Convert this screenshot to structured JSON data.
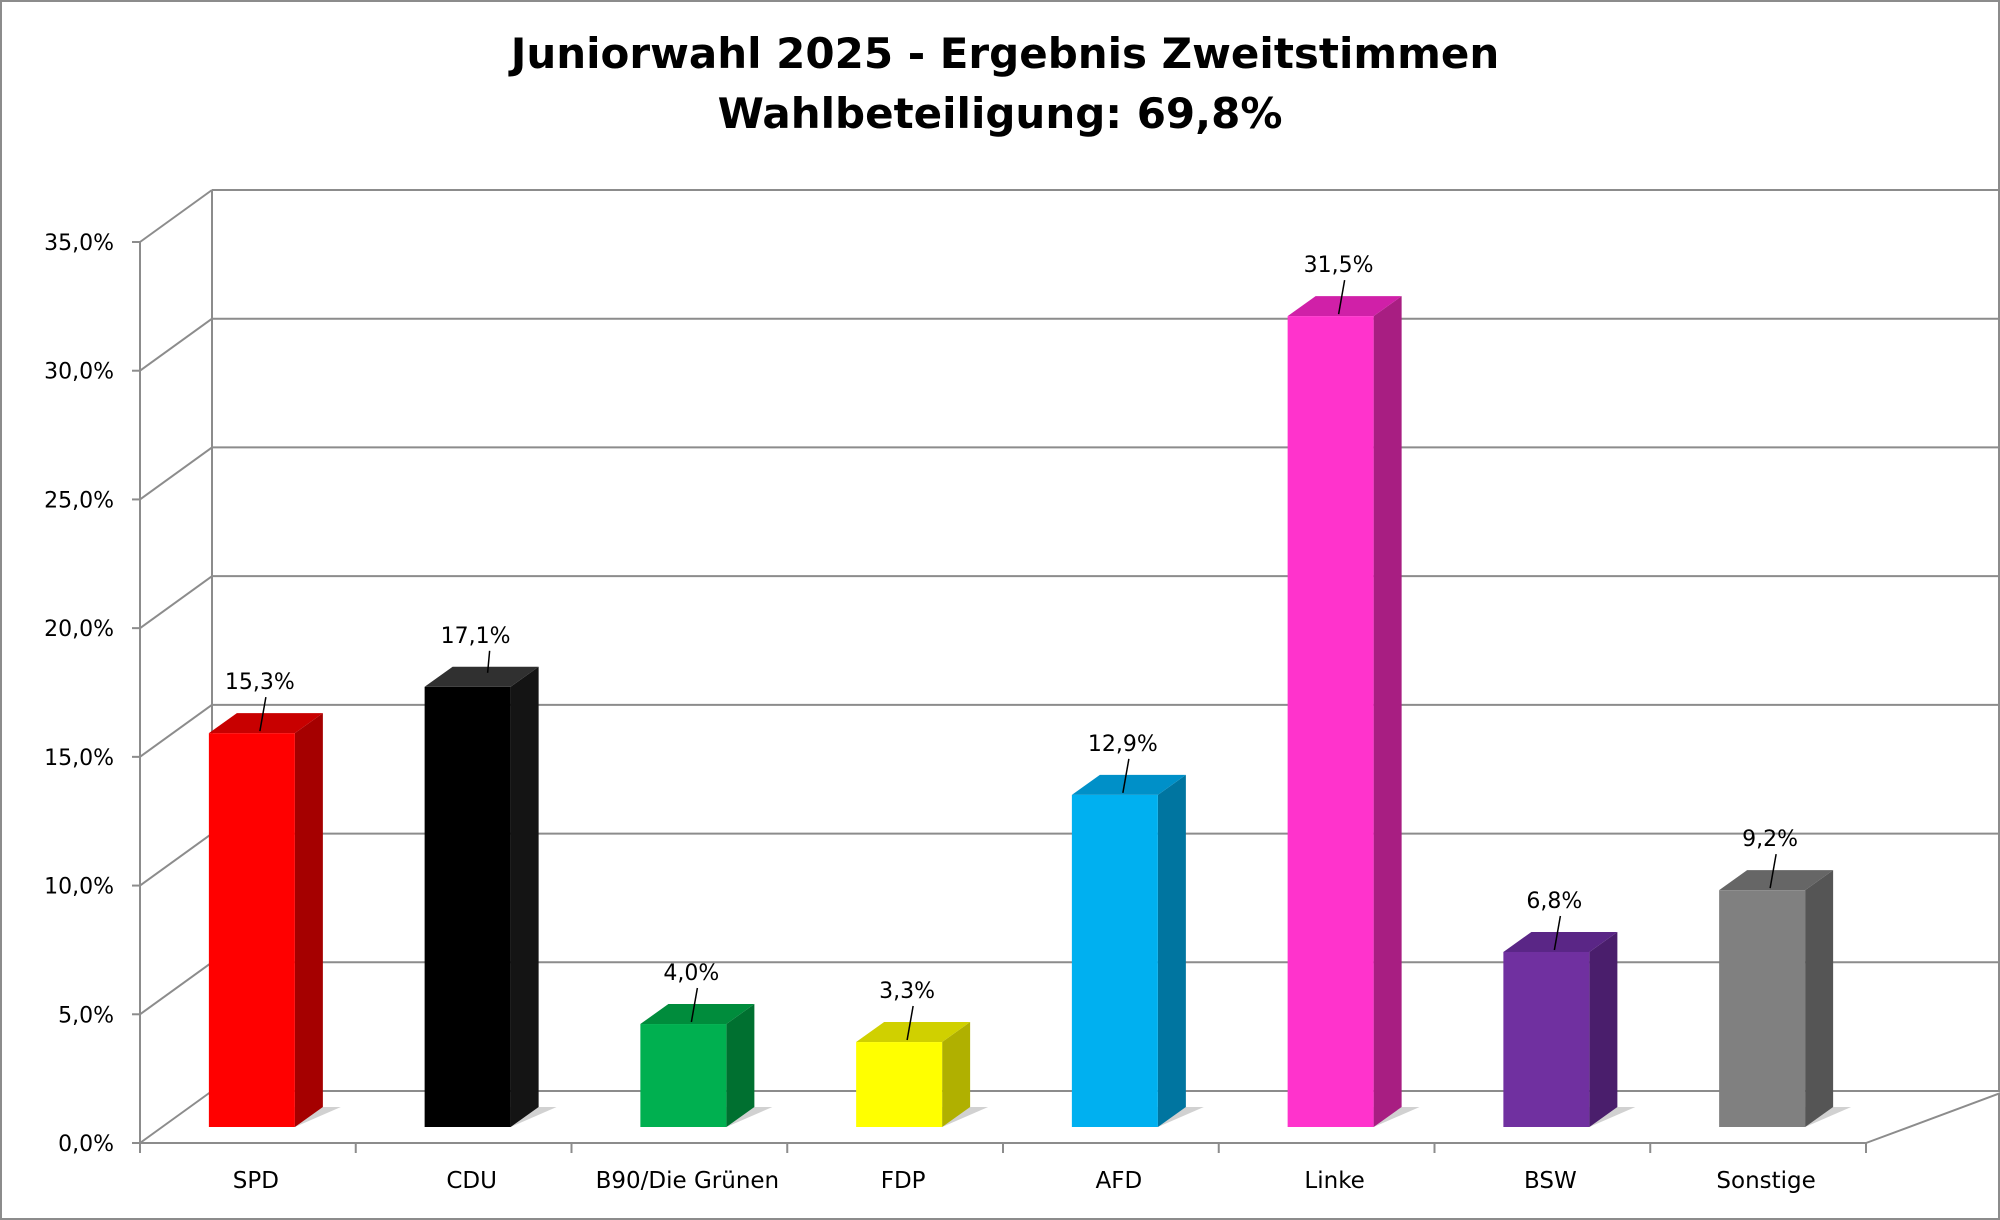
{
  "chart_data": {
    "type": "bar",
    "title": "Juniorwahl 2025 - Ergebnis Zweitstimmen",
    "subtitle": "Wahlbeteiligung: 69,8%",
    "xlabel": "",
    "ylabel": "",
    "ylim": [
      0,
      35
    ],
    "ytick_step": 5,
    "yticks": [
      "0,0%",
      "5,0%",
      "10,0%",
      "15,0%",
      "20,0%",
      "25,0%",
      "30,0%",
      "35,0%"
    ],
    "grid": true,
    "legend": "none",
    "categories": [
      "SPD",
      "CDU",
      "B90/Die Grünen",
      "FDP",
      "AFD",
      "Linke",
      "BSW",
      "Sonstige"
    ],
    "values": [
      15.3,
      17.1,
      4.0,
      3.3,
      12.9,
      31.5,
      6.8,
      9.2
    ],
    "data_labels": [
      "15,3%",
      "17,1%",
      "4,0%",
      "3,3%",
      "12,9%",
      "31,5%",
      "6,8%",
      "9,2%"
    ],
    "colors": [
      "#ff0000",
      "#000000",
      "#00b050",
      "#ffff00",
      "#00b0f0",
      "#ff33cc",
      "#7030a0",
      "#808080"
    ],
    "side_colors": [
      "#a50000",
      "#141414",
      "#007030",
      "#b0b000",
      "#0075a0",
      "#a81e82",
      "#4a1e6c",
      "#555555"
    ],
    "top_colors": [
      "#c80000",
      "#303030",
      "#008c3c",
      "#d0d000",
      "#0090c8",
      "#d020a8",
      "#5a2686",
      "#666666"
    ]
  }
}
